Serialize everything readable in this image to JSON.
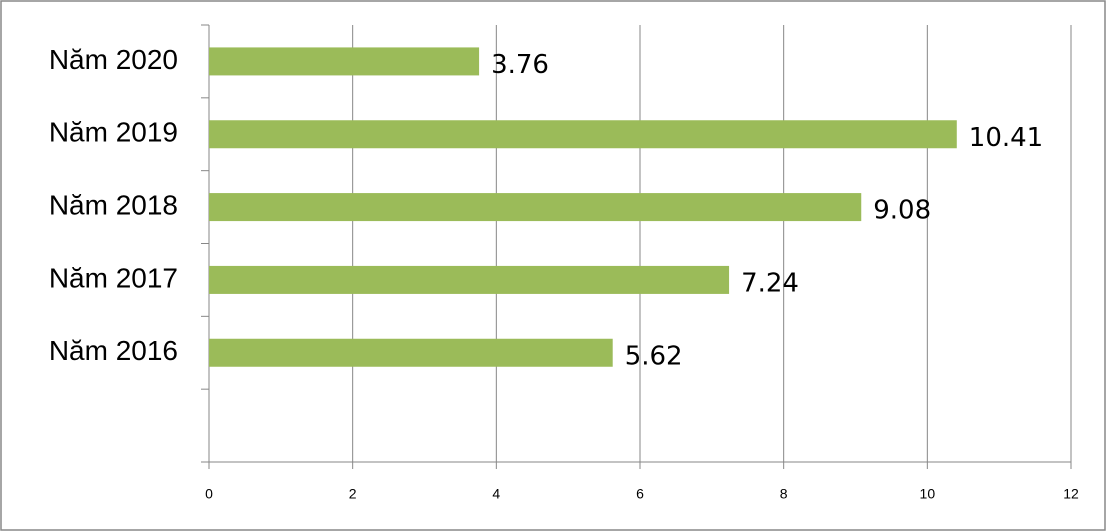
{
  "chart_data": {
    "type": "bar",
    "orientation": "horizontal",
    "categories": [
      null,
      "Năm 2016",
      "Năm 2017",
      "Năm 2018",
      "Năm 2019",
      "Năm 2020"
    ],
    "values": [
      null,
      5.62,
      7.24,
      9.08,
      10.41,
      3.76
    ],
    "color": "#9bbb59",
    "xlim": [
      0,
      12
    ],
    "xticks": [
      0,
      2,
      4,
      6,
      8,
      10,
      12
    ],
    "grid": true
  }
}
